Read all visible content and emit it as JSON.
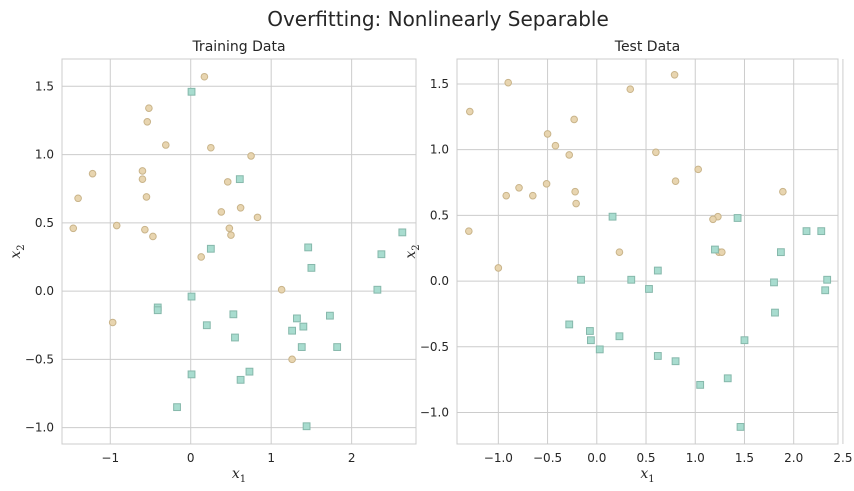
{
  "figure_title": "Overfitting: Nonlinearly Separable",
  "colors": {
    "circle_fill": "#e8d5b0",
    "circle_edge": "#c9b48a",
    "square_fill": "#a8dccf",
    "square_edge": "#86b8ab",
    "grid": "#cccccc"
  },
  "chart_data": [
    {
      "type": "scatter",
      "title": "Training Data",
      "xlabel": "x_1",
      "ylabel": "x_2",
      "xlim": [
        -1.6,
        2.8
      ],
      "ylim": [
        -1.12,
        1.7
      ],
      "xticks": [
        -1,
        0,
        1,
        2
      ],
      "xtick_labels": [
        "−1",
        "0",
        "1",
        "2"
      ],
      "yticks": [
        -1.0,
        -0.5,
        0.0,
        0.5,
        1.0,
        1.5
      ],
      "ytick_labels": [
        "−1.0",
        "−0.5",
        "0.0",
        "0.5",
        "1.0",
        "1.5"
      ],
      "grid": true,
      "series": [
        {
          "marker": "circle",
          "points": [
            [
              0.17,
              1.57
            ],
            [
              -0.52,
              1.34
            ],
            [
              -0.54,
              1.24
            ],
            [
              -0.31,
              1.07
            ],
            [
              0.25,
              1.05
            ],
            [
              -1.22,
              0.86
            ],
            [
              -0.6,
              0.88
            ],
            [
              -0.6,
              0.82
            ],
            [
              0.75,
              0.99
            ],
            [
              0.46,
              0.8
            ],
            [
              -1.4,
              0.68
            ],
            [
              -0.55,
              0.69
            ],
            [
              0.62,
              0.61
            ],
            [
              0.38,
              0.58
            ],
            [
              0.83,
              0.54
            ],
            [
              -0.92,
              0.48
            ],
            [
              -1.46,
              0.46
            ],
            [
              0.48,
              0.46
            ],
            [
              -0.57,
              0.45
            ],
            [
              0.5,
              0.41
            ],
            [
              -0.47,
              0.4
            ],
            [
              0.13,
              0.25
            ],
            [
              1.13,
              0.01
            ],
            [
              -0.97,
              -0.23
            ],
            [
              1.26,
              -0.5
            ]
          ]
        },
        {
          "marker": "square",
          "points": [
            [
              0.01,
              1.46
            ],
            [
              0.61,
              0.82
            ],
            [
              0.25,
              0.31
            ],
            [
              1.46,
              0.32
            ],
            [
              2.37,
              0.27
            ],
            [
              2.63,
              0.43
            ],
            [
              1.5,
              0.17
            ],
            [
              2.32,
              0.01
            ],
            [
              0.01,
              -0.04
            ],
            [
              -0.41,
              -0.12
            ],
            [
              -0.41,
              -0.14
            ],
            [
              0.53,
              -0.17
            ],
            [
              1.32,
              -0.2
            ],
            [
              1.73,
              -0.18
            ],
            [
              0.2,
              -0.25
            ],
            [
              1.4,
              -0.26
            ],
            [
              1.26,
              -0.29
            ],
            [
              0.55,
              -0.34
            ],
            [
              1.38,
              -0.41
            ],
            [
              1.82,
              -0.41
            ],
            [
              0.73,
              -0.59
            ],
            [
              0.01,
              -0.61
            ],
            [
              0.62,
              -0.65
            ],
            [
              -0.17,
              -0.85
            ],
            [
              1.44,
              -0.99
            ]
          ]
        }
      ]
    },
    {
      "type": "scatter",
      "title": "Test Data",
      "xlabel": "x_1",
      "ylabel": "x_2",
      "xlim": [
        -1.42,
        2.45
      ],
      "ylim": [
        -1.24,
        1.69
      ],
      "xticks": [
        -1.0,
        -0.5,
        0.0,
        0.5,
        1.0,
        1.5,
        2.0,
        2.5
      ],
      "xtick_labels": [
        "−1.0",
        "−0.5",
        "0.0",
        "0.5",
        "1.0",
        "1.5",
        "2.0",
        "2.5"
      ],
      "yticks": [
        -1.0,
        -0.5,
        0.0,
        0.5,
        1.0,
        1.5
      ],
      "ytick_labels": [
        "−1.0",
        "−0.5",
        "0.0",
        "0.5",
        "1.0",
        "1.5"
      ],
      "grid": true,
      "series": [
        {
          "marker": "circle",
          "points": [
            [
              0.79,
              1.57
            ],
            [
              -0.9,
              1.51
            ],
            [
              0.34,
              1.46
            ],
            [
              -1.29,
              1.29
            ],
            [
              -0.23,
              1.23
            ],
            [
              -0.5,
              1.12
            ],
            [
              -0.42,
              1.03
            ],
            [
              -0.28,
              0.96
            ],
            [
              0.6,
              0.98
            ],
            [
              1.03,
              0.85
            ],
            [
              0.8,
              0.76
            ],
            [
              -0.79,
              0.71
            ],
            [
              -0.51,
              0.74
            ],
            [
              -0.92,
              0.65
            ],
            [
              -0.65,
              0.65
            ],
            [
              -0.22,
              0.68
            ],
            [
              1.89,
              0.68
            ],
            [
              -0.21,
              0.59
            ],
            [
              1.23,
              0.49
            ],
            [
              1.18,
              0.47
            ],
            [
              -1.3,
              0.38
            ],
            [
              0.23,
              0.22
            ],
            [
              1.24,
              0.22
            ],
            [
              1.27,
              0.22
            ],
            [
              -1.0,
              0.1
            ]
          ]
        },
        {
          "marker": "square",
          "points": [
            [
              0.16,
              0.49
            ],
            [
              1.43,
              0.48
            ],
            [
              1.2,
              0.24
            ],
            [
              1.87,
              0.22
            ],
            [
              2.13,
              0.38
            ],
            [
              2.28,
              0.38
            ],
            [
              0.62,
              0.08
            ],
            [
              -0.16,
              0.01
            ],
            [
              0.35,
              0.01
            ],
            [
              2.34,
              0.01
            ],
            [
              1.8,
              -0.01
            ],
            [
              0.53,
              -0.06
            ],
            [
              2.32,
              -0.07
            ],
            [
              1.81,
              -0.24
            ],
            [
              -0.28,
              -0.33
            ],
            [
              -0.07,
              -0.38
            ],
            [
              0.23,
              -0.42
            ],
            [
              1.5,
              -0.45
            ],
            [
              -0.06,
              -0.45
            ],
            [
              0.03,
              -0.52
            ],
            [
              0.62,
              -0.57
            ],
            [
              0.8,
              -0.61
            ],
            [
              1.33,
              -0.74
            ],
            [
              1.05,
              -0.79
            ],
            [
              1.46,
              -1.11
            ]
          ]
        }
      ]
    }
  ]
}
